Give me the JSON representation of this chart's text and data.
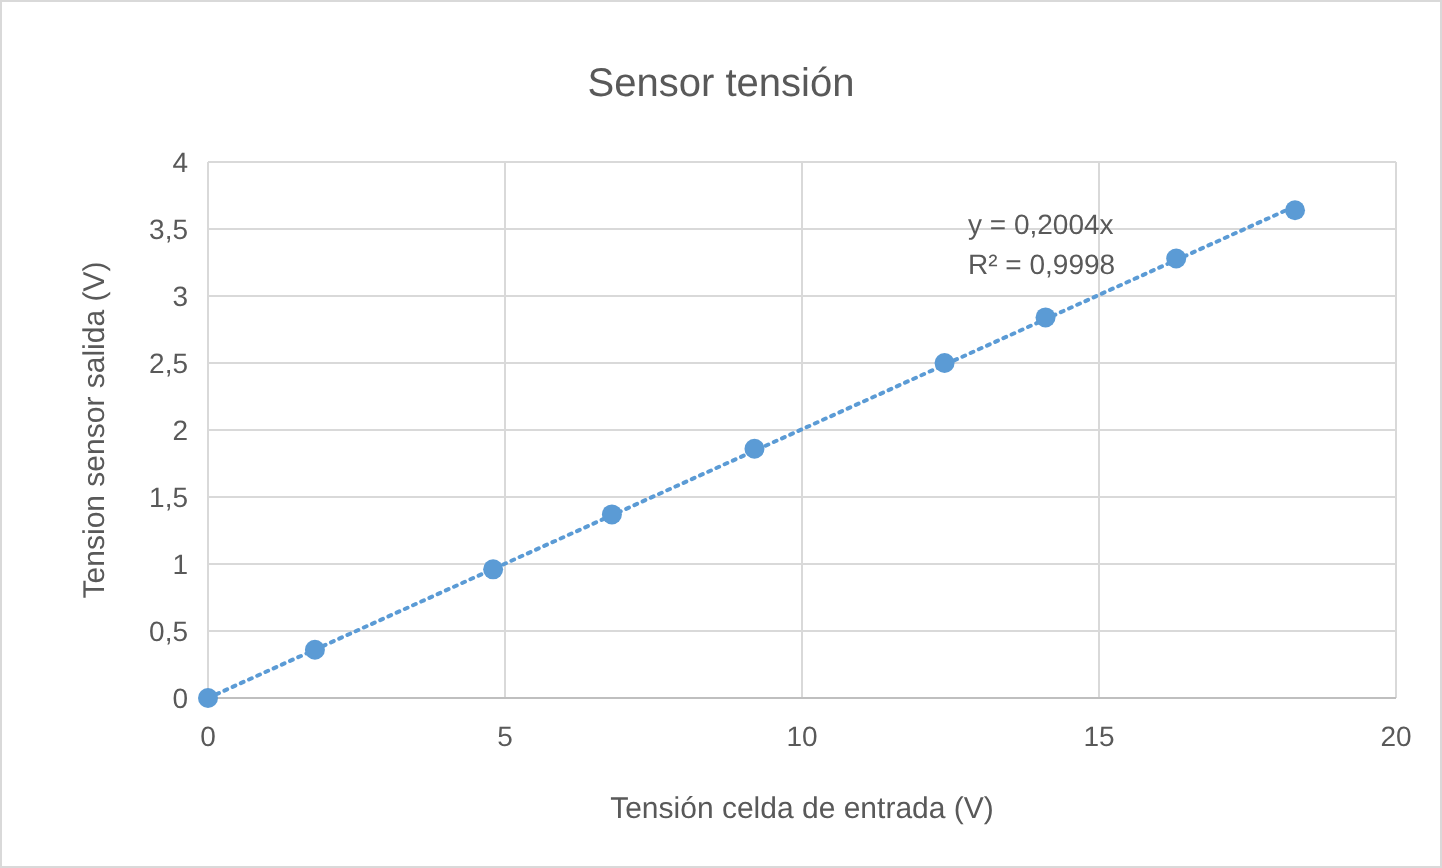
{
  "chart_data": {
    "type": "scatter",
    "title": "Sensor tensión",
    "xlabel": "Tensión celda de entrada (V)",
    "ylabel": "Tension sensor salida (V)",
    "xlim": [
      0,
      20
    ],
    "xticks": [
      0,
      5,
      10,
      15,
      20
    ],
    "ylim": [
      0,
      4
    ],
    "yticks": [
      0,
      {
        "value": 0.5,
        "label": "0,5"
      },
      1,
      {
        "value": 1.5,
        "label": "1,5"
      },
      2,
      {
        "value": 2.5,
        "label": "2,5"
      },
      3,
      {
        "value": 3.5,
        "label": "3,5"
      },
      4
    ],
    "grid": true,
    "marker": "circle",
    "series": [
      {
        "color": "#5b9bd5",
        "x": [
          0,
          1.8,
          4.8,
          6.8,
          9.2,
          12.4,
          14.1,
          16.3,
          18.3
        ],
        "values": [
          0,
          0.36,
          0.96,
          1.37,
          1.86,
          2.5,
          2.84,
          3.28,
          3.64
        ]
      },
      {
        "type": "line",
        "color": "#5b9bd5",
        "line_style": "dotted",
        "marker": "none",
        "x": [
          0,
          18.3
        ],
        "values": [
          0,
          3.67
        ]
      }
    ],
    "annotations": [
      "y = 0,2004x",
      "R² = 0,9998"
    ]
  }
}
